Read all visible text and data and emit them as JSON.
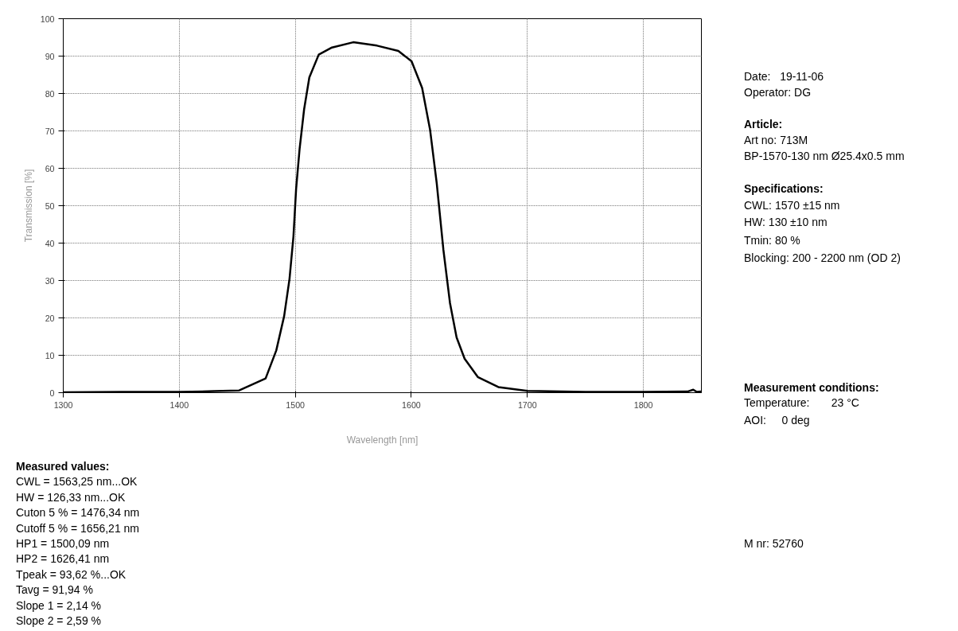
{
  "chart_data": {
    "type": "line",
    "xlabel": "Wavelength [nm]",
    "ylabel": "Transmission [%]",
    "xlim": [
      1300,
      1850
    ],
    "ylim": [
      0,
      100
    ],
    "xticks": [
      1300,
      1400,
      1500,
      1600,
      1700,
      1800
    ],
    "yticks": [
      0,
      10,
      20,
      30,
      40,
      50,
      60,
      70,
      80,
      90,
      100
    ],
    "grid": true,
    "marker": "none",
    "line_style": "solid",
    "series": [
      {
        "color": "#000000",
        "x": [
          1300,
          1350,
          1400,
          1430,
          1451.6,
          1474.4,
          1483.6,
          1490.4,
          1495,
          1498.4,
          1500.7,
          1503.7,
          1507.6,
          1512.1,
          1520.2,
          1531.6,
          1549.9,
          1570.4,
          1588.8,
          1600.2,
          1609.3,
          1616.2,
          1621.9,
          1627.6,
          1633.3,
          1639,
          1645.9,
          1657.3,
          1675,
          1700,
          1750,
          1800,
          1838,
          1843,
          1846,
          1850
        ],
        "values": [
          0.1,
          0.2,
          0.2,
          0.4,
          0.6,
          3.8,
          11.3,
          20.5,
          30.4,
          41.8,
          54.5,
          65.2,
          75.8,
          84.3,
          90.4,
          92.3,
          93.7,
          92.8,
          91.4,
          88.6,
          81.5,
          70.2,
          56,
          38.3,
          24,
          14.8,
          9.1,
          4.2,
          1.5,
          0.5,
          0.2,
          0.2,
          0.3,
          0.8,
          0.2,
          0.3
        ]
      }
    ],
    "annotations": [
      "Date:   19-11-06",
      "Operator: DG",
      "Article:",
      "Art no: 713M",
      "BP-1570-130 nm Ø25.4x0.5 mm",
      "Specifications:",
      "CWL: 1570 ±15 nm",
      "HW: 130 ±10 nm",
      "Tmin: 80 %",
      "Blocking: 200 - 2200 nm (OD 2)",
      "Measurement conditions:",
      "Temperature:       23 °C",
      "AOI:     0 deg",
      "M nr: 52760",
      "Measured values:",
      "CWL = 1563,25 nm...OK",
      "HW = 126,33 nm...OK",
      "Cuton 5 % = 1476,34 nm",
      "Cutoff 5 % = 1656,21 nm",
      "HP1 = 1500,09 nm",
      "HP2 = 1626,41 nm",
      "Tpeak = 93,62 %...OK",
      "Tavg = 91,94 %",
      "Slope 1 = 2,14 %",
      "Slope 2 = 2,59 %"
    ]
  }
}
